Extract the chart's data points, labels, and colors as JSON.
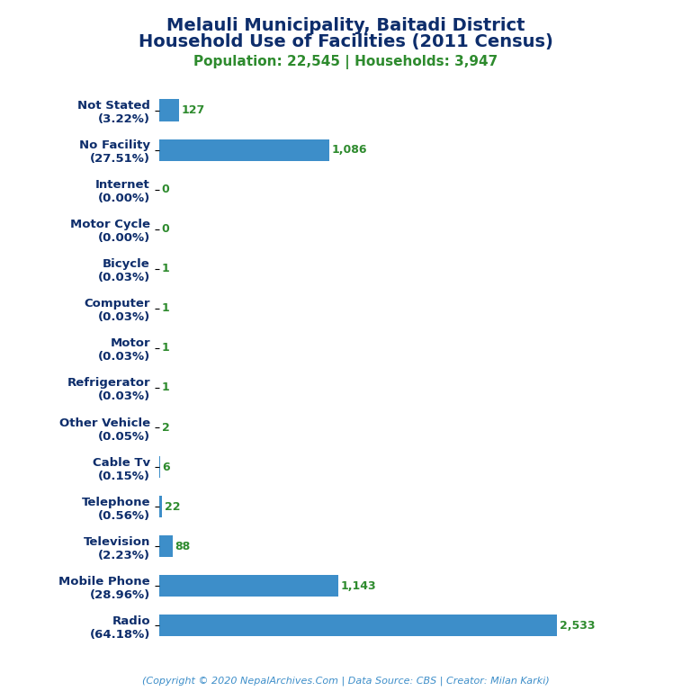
{
  "title_line1": "Melauli Municipality, Baitadi District",
  "title_line2": "Household Use of Facilities (2011 Census)",
  "subtitle": "Population: 22,545 | Households: 3,947",
  "footer": "(Copyright © 2020 NepalArchives.Com | Data Source: CBS | Creator: Milan Karki)",
  "categories": [
    "Not Stated\n(3.22%)",
    "No Facility\n(27.51%)",
    "Internet\n(0.00%)",
    "Motor Cycle\n(0.00%)",
    "Bicycle\n(0.03%)",
    "Computer\n(0.03%)",
    "Motor\n(0.03%)",
    "Refrigerator\n(0.03%)",
    "Other Vehicle\n(0.05%)",
    "Cable Tv\n(0.15%)",
    "Telephone\n(0.56%)",
    "Television\n(2.23%)",
    "Mobile Phone\n(28.96%)",
    "Radio\n(64.18%)"
  ],
  "values": [
    127,
    1086,
    0,
    0,
    1,
    1,
    1,
    1,
    2,
    6,
    22,
    88,
    1143,
    2533
  ],
  "value_labels": [
    "127",
    "1,086",
    "0",
    "0",
    "1",
    "1",
    "1",
    "1",
    "2",
    "6",
    "22",
    "88",
    "1,143",
    "2,533"
  ],
  "bar_color": "#3d8ec9",
  "title_color": "#0d2d6b",
  "subtitle_color": "#2e8b2e",
  "value_label_color": "#2e8b2e",
  "ylabel_color": "#0d2d6b",
  "footer_color": "#3d8ec9",
  "background_color": "#ffffff",
  "title_fontsize": 14,
  "subtitle_fontsize": 11,
  "ylabel_fontsize": 9.5,
  "value_fontsize": 9,
  "footer_fontsize": 8
}
